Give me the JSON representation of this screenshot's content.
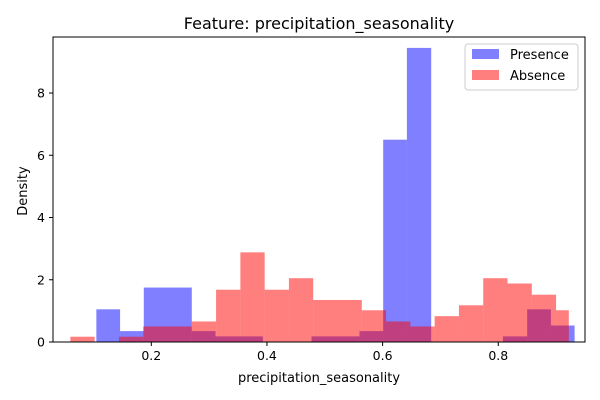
{
  "chart_data": {
    "type": "bar",
    "title": "Feature: precipitation_seasonality",
    "xlabel": "precipitation_seasonality",
    "ylabel": "Density",
    "xlim": [
      0.03,
      0.95
    ],
    "ylim": [
      0,
      9.8
    ],
    "xticks": [
      0.2,
      0.4,
      0.6,
      0.8
    ],
    "xtick_labels": [
      "0.2",
      "0.4",
      "0.6",
      "0.8"
    ],
    "yticks": [
      0,
      2,
      4,
      6,
      8
    ],
    "ytick_labels": [
      "0",
      "2",
      "4",
      "6",
      "8"
    ],
    "grid": false,
    "legend_position": "top-right",
    "series": [
      {
        "name": "Presence",
        "color": "#0000ff",
        "opacity": 0.5,
        "bins": [
          {
            "x0": 0.105,
            "x1": 0.146,
            "value": 1.05
          },
          {
            "x0": 0.146,
            "x1": 0.187,
            "value": 0.35
          },
          {
            "x0": 0.187,
            "x1": 0.27,
            "value": 1.75
          },
          {
            "x0": 0.27,
            "x1": 0.311,
            "value": 0.35
          },
          {
            "x0": 0.311,
            "x1": 0.393,
            "value": 0.18
          },
          {
            "x0": 0.477,
            "x1": 0.56,
            "value": 0.18
          },
          {
            "x0": 0.56,
            "x1": 0.601,
            "value": 0.35
          },
          {
            "x0": 0.601,
            "x1": 0.642,
            "value": 6.5
          },
          {
            "x0": 0.642,
            "x1": 0.684,
            "value": 9.45
          },
          {
            "x0": 0.808,
            "x1": 0.85,
            "value": 0.18
          },
          {
            "x0": 0.85,
            "x1": 0.891,
            "value": 1.05
          },
          {
            "x0": 0.891,
            "x1": 0.932,
            "value": 0.53
          }
        ]
      },
      {
        "name": "Absence",
        "color": "#ff0000",
        "opacity": 0.5,
        "bins": [
          {
            "x0": 0.06,
            "x1": 0.102,
            "value": 0.17
          },
          {
            "x0": 0.144,
            "x1": 0.186,
            "value": 0.17
          },
          {
            "x0": 0.186,
            "x1": 0.27,
            "value": 0.5
          },
          {
            "x0": 0.27,
            "x1": 0.312,
            "value": 0.66
          },
          {
            "x0": 0.312,
            "x1": 0.354,
            "value": 1.68
          },
          {
            "x0": 0.354,
            "x1": 0.396,
            "value": 2.88
          },
          {
            "x0": 0.396,
            "x1": 0.438,
            "value": 1.68
          },
          {
            "x0": 0.438,
            "x1": 0.48,
            "value": 2.05
          },
          {
            "x0": 0.48,
            "x1": 0.564,
            "value": 1.35
          },
          {
            "x0": 0.564,
            "x1": 0.606,
            "value": 1.02
          },
          {
            "x0": 0.606,
            "x1": 0.648,
            "value": 0.66
          },
          {
            "x0": 0.648,
            "x1": 0.69,
            "value": 0.5
          },
          {
            "x0": 0.69,
            "x1": 0.732,
            "value": 0.83
          },
          {
            "x0": 0.732,
            "x1": 0.774,
            "value": 1.18
          },
          {
            "x0": 0.774,
            "x1": 0.816,
            "value": 2.05
          },
          {
            "x0": 0.816,
            "x1": 0.858,
            "value": 1.88
          },
          {
            "x0": 0.858,
            "x1": 0.9,
            "value": 1.52
          },
          {
            "x0": 0.9,
            "x1": 0.922,
            "value": 1.02
          }
        ]
      }
    ]
  }
}
